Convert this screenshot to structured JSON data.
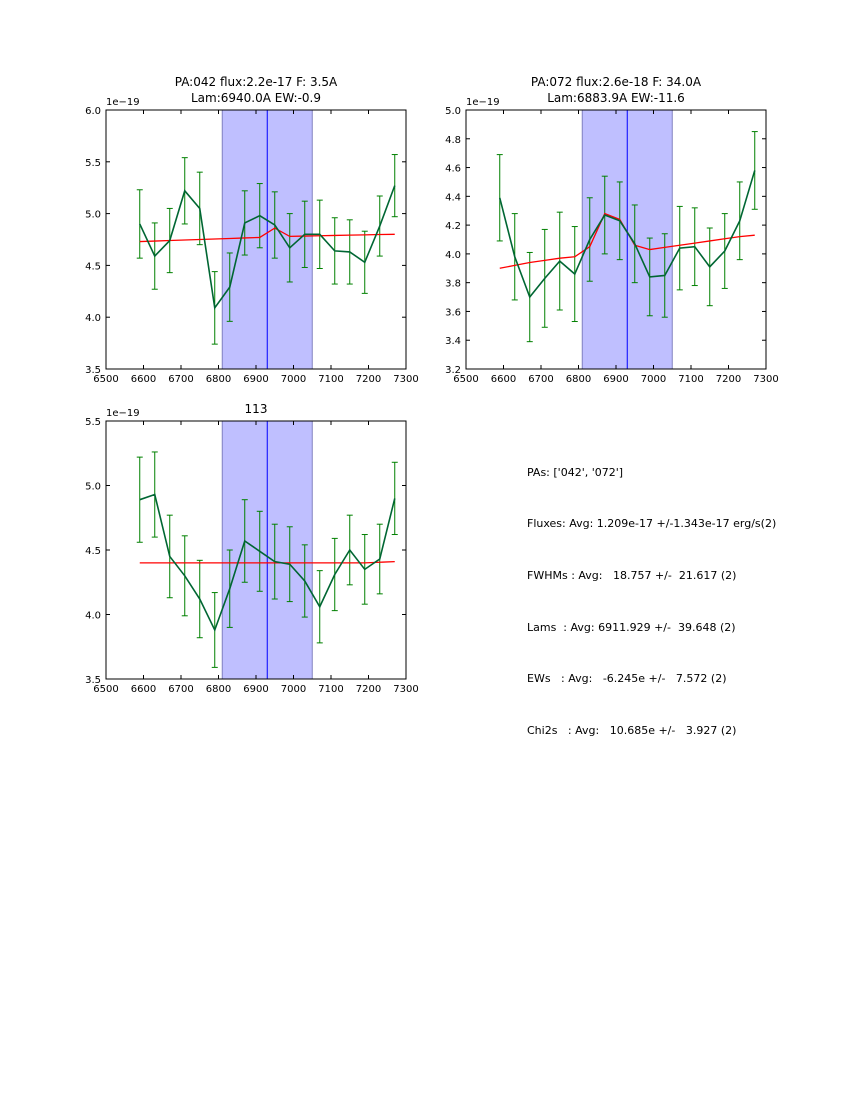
{
  "chart_data": [
    {
      "type": "line",
      "title": [
        "PA:042 flux:2.2e-17 F: 3.5A",
        "Lam:6940.0A EW:-0.9"
      ],
      "offset_label": "1e−19",
      "xlim": [
        6500,
        7300
      ],
      "ylim": [
        3.5,
        6.0
      ],
      "xticks": [
        "6500",
        "6600",
        "6700",
        "6800",
        "6900",
        "7000",
        "7100",
        "7200",
        "7300"
      ],
      "yticks": [
        "3.5",
        "4.0",
        "4.5",
        "5.0",
        "5.5",
        "6.0"
      ],
      "x": [
        6590,
        6630,
        6670,
        6710,
        6750,
        6790,
        6830,
        6870,
        6910,
        6950,
        6990,
        7030,
        7070,
        7110,
        7150,
        7190,
        7230,
        7270
      ],
      "y": [
        4.9,
        4.59,
        4.74,
        5.22,
        5.05,
        4.09,
        4.29,
        4.91,
        4.98,
        4.89,
        4.67,
        4.8,
        4.8,
        4.64,
        4.63,
        4.53,
        4.88,
        5.27
      ],
      "err": [
        0.33,
        0.32,
        0.31,
        0.32,
        0.35,
        0.35,
        0.33,
        0.31,
        0.31,
        0.32,
        0.33,
        0.32,
        0.33,
        0.32,
        0.31,
        0.3,
        0.29,
        0.3
      ],
      "fit": [
        4.73,
        4.735,
        4.74,
        4.745,
        4.75,
        4.755,
        4.76,
        4.765,
        4.77,
        4.86,
        4.78,
        4.783,
        4.786,
        4.789,
        4.792,
        4.795,
        4.798,
        4.8
      ],
      "span": [
        6810,
        7050
      ],
      "line_center": 6930
    },
    {
      "type": "line",
      "title": [
        "PA:072 flux:2.6e-18 F: 34.0A",
        "Lam:6883.9A EW:-11.6"
      ],
      "offset_label": "1e−19",
      "xlim": [
        6500,
        7300
      ],
      "ylim": [
        3.2,
        5.0
      ],
      "xticks": [
        "6500",
        "6600",
        "6700",
        "6800",
        "6900",
        "7000",
        "7100",
        "7200",
        "7300"
      ],
      "yticks": [
        "3.2",
        "3.4",
        "3.6",
        "3.8",
        "4.0",
        "4.2",
        "4.4",
        "4.6",
        "4.8",
        "5.0"
      ],
      "x": [
        6590,
        6630,
        6670,
        6710,
        6750,
        6790,
        6830,
        6870,
        6910,
        6950,
        6990,
        7030,
        7070,
        7110,
        7150,
        7190,
        7230,
        7270
      ],
      "y": [
        4.39,
        3.98,
        3.7,
        3.83,
        3.95,
        3.86,
        4.1,
        4.27,
        4.23,
        4.07,
        3.84,
        3.85,
        4.04,
        4.05,
        3.91,
        4.02,
        4.23,
        4.58
      ],
      "err": [
        0.3,
        0.3,
        0.31,
        0.34,
        0.34,
        0.33,
        0.29,
        0.27,
        0.27,
        0.27,
        0.27,
        0.29,
        0.29,
        0.27,
        0.27,
        0.26,
        0.27,
        0.27
      ],
      "fit": [
        3.9,
        3.92,
        3.94,
        3.955,
        3.97,
        3.98,
        4.05,
        4.28,
        4.24,
        4.06,
        4.03,
        4.045,
        4.06,
        4.075,
        4.09,
        4.105,
        4.12,
        4.13
      ],
      "span": [
        6810,
        7050
      ],
      "line_center": 6930
    },
    {
      "type": "line",
      "title": [
        "113"
      ],
      "offset_label": "1e−19",
      "xlim": [
        6500,
        7300
      ],
      "ylim": [
        3.5,
        5.5
      ],
      "xticks": [
        "6500",
        "6600",
        "6700",
        "6800",
        "6900",
        "7000",
        "7100",
        "7200",
        "7300"
      ],
      "yticks": [
        "3.5",
        "4.0",
        "4.5",
        "5.0",
        "5.5"
      ],
      "x": [
        6590,
        6630,
        6670,
        6710,
        6750,
        6790,
        6830,
        6870,
        6910,
        6950,
        6990,
        7030,
        7070,
        7110,
        7150,
        7190,
        7230,
        7270
      ],
      "y": [
        4.89,
        4.93,
        4.45,
        4.3,
        4.12,
        3.88,
        4.2,
        4.57,
        4.49,
        4.41,
        4.39,
        4.26,
        4.06,
        4.31,
        4.5,
        4.35,
        4.43,
        4.9
      ],
      "err": [
        0.33,
        0.33,
        0.32,
        0.31,
        0.3,
        0.29,
        0.3,
        0.32,
        0.31,
        0.29,
        0.29,
        0.28,
        0.28,
        0.28,
        0.27,
        0.27,
        0.27,
        0.28
      ],
      "fit": [
        4.4,
        4.4,
        4.4,
        4.4,
        4.4,
        4.4,
        4.4,
        4.4,
        4.4,
        4.4,
        4.4,
        4.4,
        4.4,
        4.4,
        4.4,
        4.4,
        4.405,
        4.41
      ],
      "span": [
        6810,
        7050
      ],
      "line_center": 6930
    }
  ],
  "stats": [
    "PAs: ['042', '072']",
    "Fluxes: Avg: 1.209e-17 +/-1.343e-17 erg/s(2)",
    "FWHMs : Avg:   18.757 +/-  21.617 (2)",
    "Lams  : Avg: 6911.929 +/-  39.648 (2)",
    "EWs   : Avg:   -6.245e +/-   7.572 (2)",
    "Chi2s   : Avg:   10.685e +/-   3.927 (2)"
  ],
  "colors": {
    "data": "#006633",
    "err": "#008000",
    "fit": "#ff0000",
    "span": "#bfbfff",
    "center": "#0000ff"
  }
}
